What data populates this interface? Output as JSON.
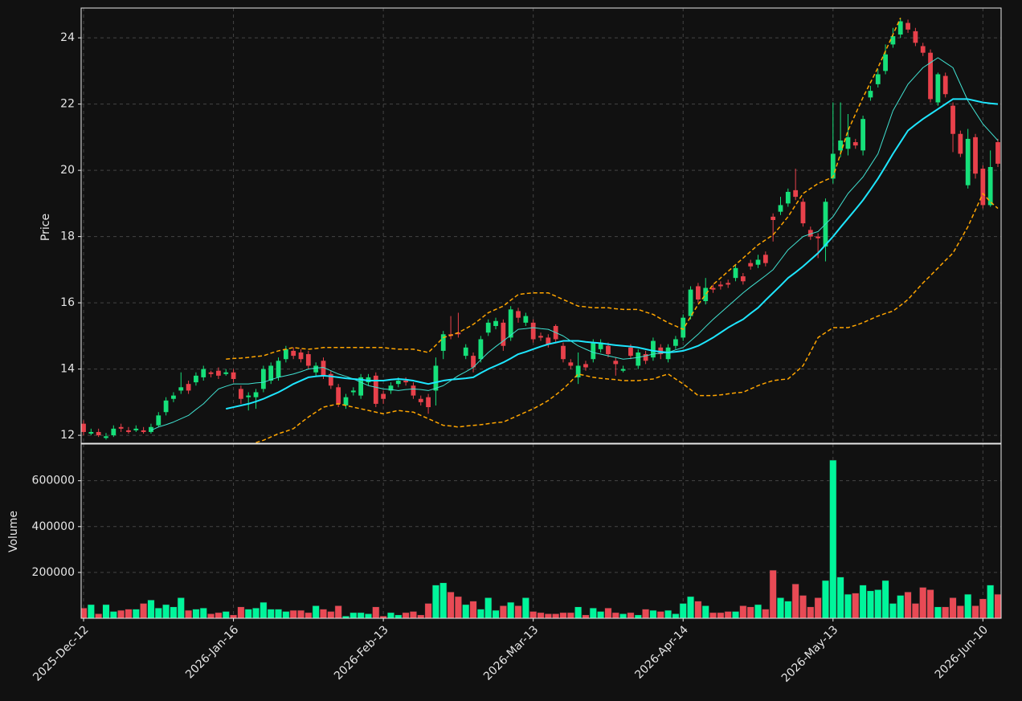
{
  "chart_data": {
    "type": "candlestick",
    "categories": [
      "2025-Dec-12",
      null,
      null,
      null,
      null,
      null,
      null,
      null,
      null,
      null,
      null,
      null,
      null,
      null,
      null,
      null,
      null,
      null,
      null,
      null,
      "2026-Jan-16",
      null,
      null,
      null,
      null,
      null,
      null,
      null,
      null,
      null,
      null,
      null,
      null,
      null,
      null,
      null,
      null,
      null,
      null,
      null,
      "2026-Feb-13",
      null,
      null,
      null,
      null,
      null,
      null,
      null,
      null,
      null,
      null,
      null,
      null,
      null,
      null,
      null,
      null,
      null,
      null,
      null,
      "2026-Mar-13",
      null,
      null,
      null,
      null,
      null,
      null,
      null,
      null,
      null,
      null,
      null,
      null,
      null,
      null,
      null,
      null,
      null,
      null,
      null,
      "2026-Apr-14",
      null,
      null,
      null,
      null,
      null,
      null,
      null,
      null,
      null,
      null,
      null,
      null,
      null,
      null,
      null,
      null,
      null,
      null,
      null,
      "2026-May-13",
      null,
      null,
      null,
      null,
      null,
      null,
      null,
      null,
      null,
      null,
      null,
      null,
      null,
      null,
      null,
      null,
      null,
      null,
      null,
      "2026-Jun-10",
      null,
      null
    ],
    "open": [
      12.35,
      12.05,
      12.1,
      11.92,
      12.0,
      12.25,
      12.15,
      12.15,
      12.15,
      12.1,
      12.3,
      12.7,
      13.1,
      13.35,
      13.55,
      13.6,
      13.75,
      13.9,
      13.95,
      13.85,
      13.9,
      13.4,
      13.15,
      13.15,
      13.4,
      13.65,
      13.75,
      14.3,
      14.55,
      14.5,
      14.45,
      13.9,
      14.25,
      13.85,
      13.45,
      12.9,
      13.3,
      13.2,
      13.6,
      13.8,
      13.25,
      13.35,
      13.55,
      13.65,
      13.5,
      13.1,
      13.15,
      13.35,
      14.55,
      15.05,
      15.1,
      14.4,
      14.4,
      14.3,
      15.1,
      15.3,
      15.4,
      14.95,
      15.75,
      15.4,
      15.4,
      15.0,
      14.95,
      15.3,
      14.7,
      14.2,
      13.75,
      14.15,
      14.3,
      14.6,
      14.7,
      14.25,
      13.95,
      14.65,
      14.1,
      14.45,
      14.35,
      14.65,
      14.3,
      14.7,
      14.95,
      15.6,
      16.5,
      16.05,
      16.45,
      16.55,
      16.6,
      16.75,
      16.8,
      17.2,
      17.15,
      17.45,
      18.6,
      18.75,
      19.0,
      19.4,
      19.05,
      18.2,
      18.0,
      17.7,
      19.75,
      20.6,
      20.65,
      20.85,
      20.6,
      22.2,
      22.6,
      23.0,
      23.8,
      24.1,
      24.45,
      24.2,
      23.75,
      23.55,
      22.05,
      22.85,
      21.95,
      21.1,
      19.55,
      21.0,
      20.05,
      18.95,
      20.85
    ],
    "high": [
      12.45,
      12.2,
      12.2,
      12.07,
      12.3,
      12.35,
      12.25,
      12.3,
      12.25,
      12.35,
      12.7,
      13.15,
      13.3,
      13.9,
      13.65,
      13.9,
      14.1,
      13.95,
      14.05,
      14.0,
      14.0,
      13.5,
      13.3,
      13.4,
      14.1,
      14.2,
      14.35,
      14.7,
      14.65,
      14.6,
      14.55,
      14.2,
      14.35,
      13.95,
      13.55,
      13.25,
      13.45,
      13.85,
      13.85,
      13.9,
      13.35,
      13.6,
      13.75,
      13.75,
      13.6,
      13.2,
      13.25,
      14.35,
      15.15,
      15.6,
      15.7,
      14.75,
      14.5,
      15.0,
      15.5,
      15.55,
      15.5,
      15.9,
      15.85,
      15.7,
      15.5,
      15.1,
      15.05,
      15.35,
      14.8,
      14.3,
      14.5,
      14.25,
      14.9,
      14.9,
      14.8,
      14.35,
      14.1,
      14.75,
      14.6,
      14.55,
      14.95,
      14.75,
      14.75,
      15.0,
      15.65,
      16.5,
      16.6,
      16.75,
      16.55,
      16.65,
      16.7,
      17.15,
      16.9,
      17.3,
      17.45,
      17.55,
      18.7,
      19.2,
      19.45,
      20.05,
      19.15,
      18.3,
      18.1,
      19.15,
      22.05,
      22.05,
      21.7,
      20.95,
      21.65,
      22.55,
      23.05,
      23.8,
      24.3,
      24.6,
      24.55,
      24.3,
      23.85,
      23.65,
      22.95,
      22.95,
      22.05,
      21.2,
      21.25,
      21.1,
      20.15,
      20.6,
      20.95
    ],
    "low": [
      12.0,
      12.0,
      11.95,
      11.87,
      11.95,
      12.1,
      12.05,
      12.1,
      12.05,
      12.05,
      12.25,
      12.6,
      13.0,
      13.25,
      13.25,
      13.5,
      13.65,
      13.75,
      13.7,
      13.8,
      13.6,
      12.95,
      12.75,
      12.8,
      13.3,
      13.55,
      13.65,
      14.2,
      14.3,
      14.2,
      14.0,
      13.8,
      13.7,
      13.4,
      12.85,
      12.8,
      13.2,
      13.1,
      13.5,
      12.85,
      12.95,
      13.25,
      13.45,
      13.5,
      13.1,
      12.9,
      12.65,
      12.9,
      14.3,
      14.9,
      14.95,
      14.3,
      13.9,
      14.2,
      15.0,
      15.2,
      14.55,
      14.85,
      15.4,
      15.3,
      14.8,
      14.85,
      14.65,
      14.8,
      14.2,
      14.0,
      13.55,
      13.95,
      14.2,
      14.5,
      14.35,
      13.8,
      13.9,
      14.3,
      14.0,
      14.15,
      14.25,
      14.3,
      14.2,
      14.6,
      14.85,
      15.5,
      16.0,
      15.95,
      16.3,
      16.4,
      16.45,
      16.65,
      16.55,
      17.0,
      17.05,
      17.1,
      17.85,
      18.65,
      18.9,
      19.1,
      18.3,
      17.9,
      17.35,
      17.25,
      19.6,
      20.4,
      20.45,
      20.65,
      20.45,
      22.1,
      22.5,
      22.9,
      23.7,
      24.0,
      24.15,
      23.75,
      23.45,
      22.05,
      21.95,
      22.2,
      20.55,
      20.4,
      19.45,
      19.75,
      18.85,
      18.9,
      20.1
    ],
    "close": [
      12.1,
      12.1,
      12.0,
      11.97,
      12.2,
      12.2,
      12.1,
      12.2,
      12.1,
      12.25,
      12.6,
      13.05,
      13.2,
      13.45,
      13.35,
      13.8,
      14.0,
      13.85,
      13.8,
      13.9,
      13.7,
      13.1,
      13.2,
      13.3,
      14.0,
      14.1,
      14.25,
      14.6,
      14.4,
      14.3,
      14.1,
      14.1,
      13.8,
      13.5,
      12.95,
      13.15,
      13.35,
      13.75,
      13.75,
      12.95,
      13.1,
      13.5,
      13.65,
      13.6,
      13.2,
      13.0,
      12.85,
      14.1,
      15.05,
      15.0,
      15.05,
      14.65,
      14.05,
      14.9,
      15.4,
      15.45,
      14.7,
      15.8,
      15.55,
      15.6,
      14.9,
      14.95,
      14.75,
      14.9,
      14.3,
      14.1,
      14.1,
      14.05,
      14.8,
      14.8,
      14.45,
      14.15,
      14.0,
      14.4,
      14.5,
      14.25,
      14.85,
      14.45,
      14.65,
      14.9,
      15.55,
      16.4,
      16.1,
      16.45,
      16.4,
      16.5,
      16.55,
      17.05,
      16.65,
      17.1,
      17.3,
      17.2,
      18.5,
      18.95,
      19.35,
      19.2,
      18.4,
      18.0,
      17.95,
      19.05,
      20.5,
      20.9,
      21.0,
      20.75,
      21.55,
      22.4,
      22.9,
      23.5,
      24.05,
      24.5,
      24.25,
      23.85,
      23.55,
      22.15,
      22.9,
      22.3,
      21.1,
      20.5,
      20.95,
      19.9,
      18.95,
      20.1,
      20.2
    ],
    "up_color": "#16e07a",
    "down_color": "#e8414b",
    "volume_up_color": "#00f59b",
    "volume_down_color": "#e84a55",
    "ylabel": "Price",
    "ylim": [
      11.76,
      24.9
    ],
    "yticks": [
      12,
      14,
      16,
      18,
      20,
      22,
      24
    ],
    "grid": true,
    "series": [
      {
        "color": "#40e0d0",
        "width": 1,
        "dash": false,
        "values": [
          null,
          null,
          null,
          null,
          null,
          null,
          null,
          null,
          null,
          12.15,
          12.25,
          12.32,
          12.4,
          12.5,
          12.6,
          12.78,
          12.95,
          13.18,
          13.4,
          13.48,
          13.55,
          13.55,
          13.55,
          13.58,
          13.6,
          13.68,
          13.75,
          13.8,
          13.85,
          13.92,
          14.0,
          14.03,
          14.05,
          13.95,
          13.85,
          13.78,
          13.7,
          13.6,
          13.5,
          13.45,
          13.4,
          13.38,
          13.35,
          13.38,
          13.4,
          13.38,
          13.35,
          13.42,
          13.5,
          13.65,
          13.8,
          13.92,
          14.05,
          14.28,
          14.5,
          14.68,
          14.85,
          15.02,
          15.2,
          15.22,
          15.25,
          15.22,
          15.2,
          15.1,
          15.0,
          14.85,
          14.7,
          14.6,
          14.5,
          14.45,
          14.4,
          14.35,
          14.3,
          14.32,
          14.35,
          14.4,
          14.45,
          14.48,
          14.5,
          14.58,
          14.65,
          14.85,
          15.05,
          15.28,
          15.5,
          15.7,
          15.9,
          16.1,
          16.3,
          16.48,
          16.65,
          16.82,
          17.0,
          17.3,
          17.6,
          17.8,
          18.0,
          18.08,
          18.15,
          18.38,
          18.6,
          18.95,
          19.3,
          19.55,
          19.8,
          20.15,
          20.5,
          21.15,
          21.8,
          22.2,
          22.6,
          22.85,
          23.1,
          23.25,
          23.4,
          23.25,
          23.1,
          22.6,
          22.1,
          21.75,
          21.4,
          21.15,
          20.9
        ]
      },
      {
        "color": "#1ee6ff",
        "width": 2,
        "dash": false,
        "values": [
          null,
          null,
          null,
          null,
          null,
          null,
          null,
          null,
          null,
          null,
          null,
          null,
          null,
          null,
          null,
          null,
          null,
          null,
          null,
          12.8,
          12.85,
          12.9,
          12.95,
          13.02,
          13.1,
          13.2,
          13.3,
          13.42,
          13.55,
          13.65,
          13.75,
          13.78,
          13.8,
          13.78,
          13.75,
          13.72,
          13.7,
          13.68,
          13.65,
          13.65,
          13.65,
          13.68,
          13.7,
          13.68,
          13.65,
          13.6,
          13.55,
          13.6,
          13.65,
          13.68,
          13.7,
          13.72,
          13.75,
          13.88,
          14.0,
          14.1,
          14.2,
          14.32,
          14.45,
          14.52,
          14.6,
          14.68,
          14.75,
          14.8,
          14.85,
          14.85,
          14.85,
          14.82,
          14.8,
          14.78,
          14.75,
          14.72,
          14.7,
          14.68,
          14.65,
          14.6,
          14.55,
          14.52,
          14.5,
          14.52,
          14.55,
          14.62,
          14.7,
          14.82,
          14.95,
          15.1,
          15.25,
          15.38,
          15.5,
          15.68,
          15.85,
          16.08,
          16.3,
          16.52,
          16.75,
          16.92,
          17.1,
          17.3,
          17.5,
          17.75,
          18.0,
          18.28,
          18.55,
          18.82,
          19.1,
          19.42,
          19.75,
          20.12,
          20.5,
          20.85,
          21.2,
          21.38,
          21.55,
          21.7,
          21.85,
          22.0,
          22.15,
          22.15,
          22.15,
          22.1,
          22.05,
          22.02,
          22.0
        ]
      },
      {
        "color": "#ffa500",
        "width": 1.5,
        "dash": true,
        "values": [
          null,
          null,
          null,
          null,
          null,
          null,
          null,
          null,
          null,
          null,
          null,
          null,
          null,
          null,
          null,
          null,
          null,
          null,
          null,
          14.3,
          14.32,
          14.33,
          14.35,
          14.38,
          14.4,
          14.48,
          14.55,
          14.6,
          14.65,
          14.62,
          14.6,
          14.62,
          14.65,
          14.65,
          14.65,
          14.65,
          14.65,
          14.65,
          14.65,
          14.65,
          14.65,
          14.62,
          14.6,
          14.6,
          14.6,
          14.55,
          14.5,
          14.72,
          14.95,
          15.02,
          15.1,
          15.22,
          15.35,
          15.52,
          15.7,
          15.8,
          15.9,
          16.08,
          16.25,
          16.28,
          16.3,
          16.3,
          16.3,
          16.2,
          16.1,
          16.0,
          15.9,
          15.88,
          15.85,
          15.85,
          15.85,
          15.82,
          15.8,
          15.8,
          15.8,
          15.72,
          15.65,
          15.52,
          15.4,
          15.3,
          15.2,
          15.58,
          15.95,
          16.25,
          16.55,
          16.75,
          16.95,
          17.15,
          17.35,
          17.55,
          17.75,
          17.9,
          18.05,
          18.32,
          18.6,
          18.95,
          19.3,
          19.45,
          19.6,
          19.7,
          19.8,
          20.5,
          21.2,
          21.7,
          22.2,
          22.65,
          23.1,
          23.6,
          24.1,
          24.6,
          null,
          null,
          null,
          null,
          null,
          null,
          null,
          null,
          null,
          null,
          null,
          null,
          null
        ]
      },
      {
        "color": "#ffa500",
        "width": 1.5,
        "dash": true,
        "values": [
          null,
          null,
          null,
          null,
          null,
          null,
          null,
          null,
          null,
          null,
          null,
          null,
          null,
          null,
          null,
          null,
          null,
          null,
          null,
          null,
          null,
          null,
          null,
          11.78,
          11.85,
          11.95,
          12.05,
          12.12,
          12.2,
          12.38,
          12.55,
          12.7,
          12.85,
          12.9,
          12.95,
          12.9,
          12.85,
          12.8,
          12.75,
          12.7,
          12.65,
          12.7,
          12.75,
          12.72,
          12.7,
          12.6,
          12.5,
          12.4,
          12.3,
          12.28,
          12.25,
          12.28,
          12.3,
          12.32,
          12.35,
          12.38,
          12.4,
          12.5,
          12.6,
          12.7,
          12.8,
          12.92,
          13.05,
          13.22,
          13.4,
          13.62,
          13.85,
          13.8,
          13.75,
          13.72,
          13.7,
          13.68,
          13.65,
          13.65,
          13.65,
          13.68,
          13.7,
          13.78,
          13.85,
          13.7,
          13.55,
          13.38,
          13.2,
          13.2,
          13.2,
          13.22,
          13.25,
          13.28,
          13.3,
          13.4,
          13.5,
          13.58,
          13.65,
          13.68,
          13.7,
          13.9,
          14.1,
          14.52,
          14.95,
          15.1,
          15.25,
          15.25,
          15.25,
          15.32,
          15.4,
          15.5,
          15.6,
          15.68,
          15.75,
          15.92,
          16.1,
          16.35,
          16.6,
          16.82,
          17.05,
          17.28,
          17.5,
          17.9,
          18.3,
          18.8,
          19.3,
          19.05,
          18.85
        ]
      }
    ],
    "volume_ylabel": "Volume",
    "volume": [
      45000,
      60000,
      20000,
      60000,
      30000,
      35000,
      40000,
      40000,
      65000,
      80000,
      45000,
      60000,
      50000,
      90000,
      35000,
      40000,
      45000,
      20000,
      25000,
      30000,
      15000,
      50000,
      40000,
      45000,
      70000,
      40000,
      40000,
      30000,
      35000,
      35000,
      25000,
      55000,
      40000,
      30000,
      55000,
      10000,
      25000,
      25000,
      20000,
      50000,
      10000,
      25000,
      15000,
      25000,
      30000,
      15000,
      65000,
      145000,
      155000,
      115000,
      95000,
      60000,
      75000,
      40000,
      90000,
      35000,
      55000,
      70000,
      55000,
      90000,
      30000,
      25000,
      20000,
      20000,
      25000,
      25000,
      50000,
      15000,
      45000,
      30000,
      45000,
      25000,
      20000,
      25000,
      15000,
      40000,
      35000,
      30000,
      35000,
      20000,
      65000,
      95000,
      75000,
      55000,
      25000,
      25000,
      30000,
      30000,
      55000,
      50000,
      60000,
      40000,
      210000,
      90000,
      75000,
      150000,
      100000,
      50000,
      90000,
      165000,
      690000,
      180000,
      105000,
      110000,
      145000,
      120000,
      125000,
      165000,
      65000,
      100000,
      115000,
      65000,
      135000,
      125000,
      50000,
      50000,
      90000,
      55000,
      105000,
      55000,
      85000,
      145000,
      105000
    ],
    "volume_ylim": [
      0,
      760000
    ],
    "volume_yticks": [
      200000,
      400000,
      600000
    ]
  }
}
